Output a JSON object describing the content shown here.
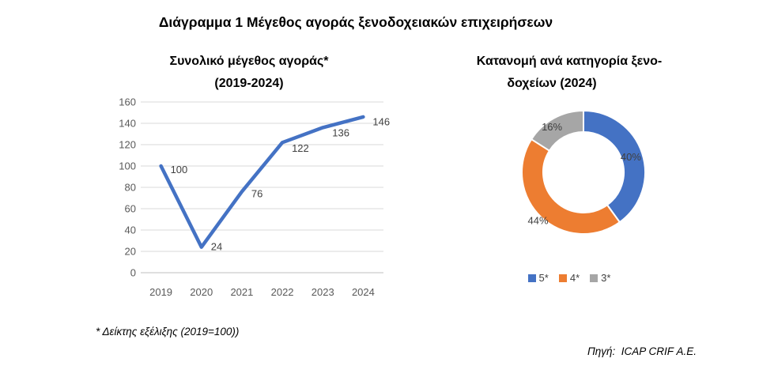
{
  "page": {
    "title": "Διάγραμμα 1 Μέγεθος αγοράς ξενοδοχειακών επιχειρήσεων",
    "footnote": "* Δείκτης εξέλιξης (2019=100))",
    "source": "Πηγή:  ICAP CRIF Α.Ε."
  },
  "colors": {
    "accent_blue": "#4472C4",
    "accent_orange": "#ED7D31",
    "accent_gray": "#A6A6A6",
    "gridline": "#D9D9D9",
    "axis_line": "#BFBFBF",
    "axis_text": "#595959",
    "data_label_text": "#404040"
  },
  "chart_data": [
    {
      "type": "line",
      "title_line1": "Συνολικό μέγεθος αγοράς*",
      "title_line2": "(2019-2024)",
      "categories": [
        "2019",
        "2020",
        "2021",
        "2022",
        "2023",
        "2024"
      ],
      "values": [
        100,
        24,
        76,
        122,
        136,
        146
      ],
      "data_labels": [
        "100",
        "24",
        "76",
        "122",
        "136",
        "146"
      ],
      "xlabel": "",
      "ylabel": "",
      "ylim": [
        0,
        160
      ],
      "ytick_step": 20,
      "yticks": [
        0,
        20,
        40,
        60,
        80,
        100,
        120,
        140,
        160
      ],
      "grid": true,
      "line_color": "#4472C4",
      "legend_position": "none"
    },
    {
      "type": "pie",
      "subtype": "doughnut",
      "title_line1": "Κατανομή ανά κατηγορία ξενο-",
      "title_line2": "δοχείων (2024)",
      "series": [
        {
          "name": "5*",
          "value": 40,
          "label": "40%",
          "color": "#4472C4"
        },
        {
          "name": "4*",
          "value": 44,
          "label": "44%",
          "color": "#ED7D31"
        },
        {
          "name": "3*",
          "value": 16,
          "label": "16%",
          "color": "#A6A6A6"
        }
      ],
      "start_angle_deg": 0,
      "legend_position": "bottom"
    }
  ]
}
